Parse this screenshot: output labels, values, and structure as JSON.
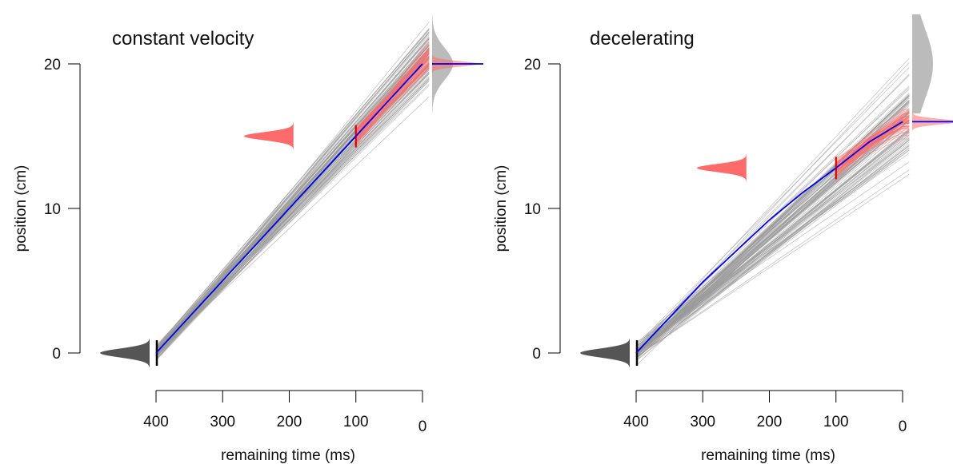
{
  "chart_data": [
    {
      "type": "line",
      "title": "constant velocity",
      "xlabel": "remaining time (ms)",
      "ylabel": "position (cm)",
      "x_ticks": [
        400,
        300,
        200,
        100,
        0
      ],
      "y_ticks": [
        0,
        10,
        20
      ],
      "xlim": [
        400,
        0
      ],
      "ylim": [
        0,
        20
      ],
      "grid": false,
      "colors": {
        "mean": "#0000e6",
        "samples": "#999999",
        "posterior": "#ff6b6b",
        "observation": "#dd0000",
        "prior": "#555555",
        "target": "#bbbbbb"
      },
      "series": [
        {
          "x": [
            400,
            300,
            200,
            100,
            0
          ],
          "y": [
            0,
            5,
            10,
            15,
            20
          ]
        }
      ],
      "observation": {
        "x": 100,
        "y": 15
      },
      "final_position": 20
    },
    {
      "type": "line",
      "title": "decelerating",
      "xlabel": "remaining time (ms)",
      "ylabel": "position (cm)",
      "x_ticks": [
        400,
        300,
        200,
        100,
        0
      ],
      "y_ticks": [
        0,
        10,
        20
      ],
      "xlim": [
        400,
        0
      ],
      "ylim": [
        0,
        20
      ],
      "grid": false,
      "colors": {
        "mean": "#0000e6",
        "samples": "#999999",
        "posterior": "#ff6b6b",
        "observation": "#dd0000",
        "prior": "#555555",
        "target": "#bbbbbb"
      },
      "series": [
        {
          "x": [
            400,
            300,
            200,
            150,
            100,
            50,
            0
          ],
          "y": [
            0,
            4.9,
            9.2,
            11.1,
            12.8,
            14.6,
            16
          ]
        }
      ],
      "observation": {
        "x": 100,
        "y": 12.8
      },
      "final_position": 16
    }
  ]
}
